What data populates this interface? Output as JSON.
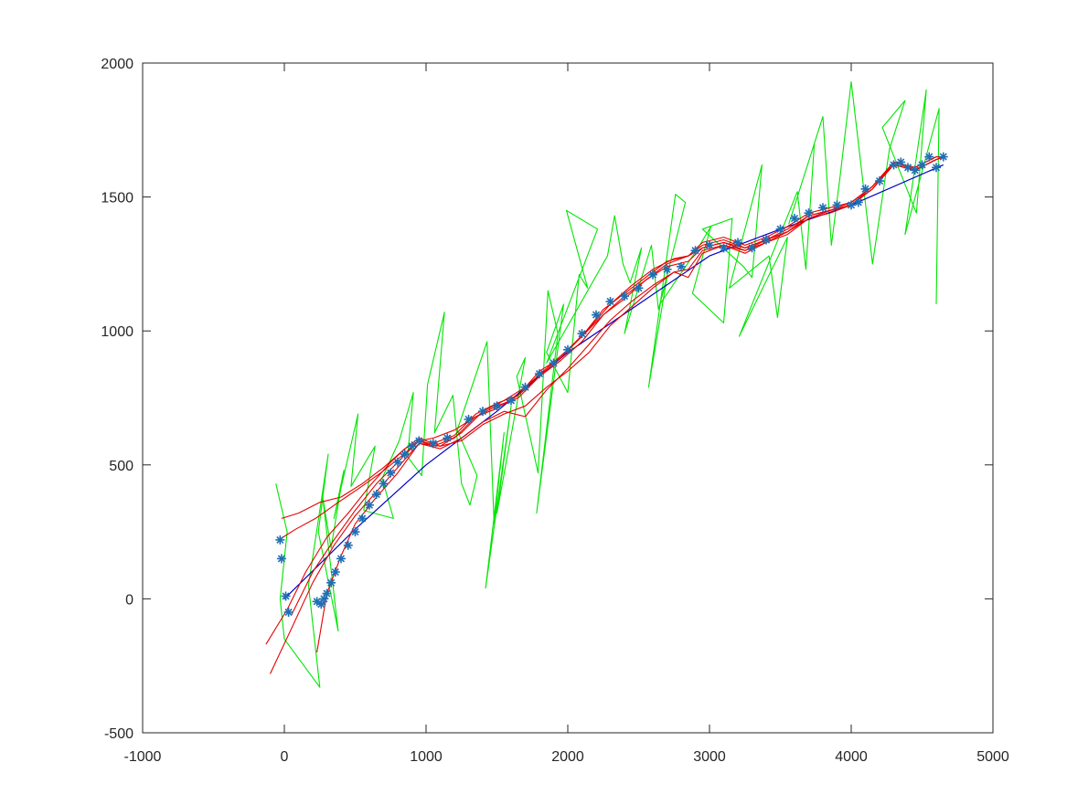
{
  "chart_data": {
    "type": "line",
    "title": "",
    "xlabel": "",
    "ylabel": "",
    "xlim": [
      -1000,
      5000
    ],
    "ylim": [
      -500,
      2000
    ],
    "xticks": [
      -1000,
      0,
      1000,
      2000,
      3000,
      4000,
      5000
    ],
    "yticks": [
      -500,
      0,
      500,
      1000,
      1500,
      2000
    ],
    "xtick_labels": [
      "-1000",
      "0",
      "1000",
      "2000",
      "3000",
      "4000",
      "5000"
    ],
    "ytick_labels": [
      "-500",
      "0",
      "500",
      "1000",
      "1500",
      "2000"
    ],
    "grid": false,
    "legend": "none",
    "colors": {
      "true_path": "#0000cc",
      "noisy": "#00e600",
      "estimates": "#e60000",
      "markers": "#1f6fb4"
    },
    "series": [
      {
        "role": "true_path",
        "style": "line",
        "x": [
          0,
          500,
          1000,
          1500,
          2000,
          2500,
          3000,
          3500,
          4000,
          4650
        ],
        "y": [
          0,
          260,
          500,
          700,
          920,
          1100,
          1280,
          1380,
          1470,
          1620
        ]
      },
      {
        "role": "noisy",
        "style": "line",
        "x": [
          -60,
          20,
          -30,
          0,
          250,
          170,
          310,
          240,
          380,
          270,
          330,
          420,
          350,
          520,
          470,
          640,
          560,
          770,
          690,
          810,
          910,
          870,
          970,
          1010,
          1130,
          1060,
          1190,
          1250,
          1310,
          1360,
          1220,
          1430,
          1480,
          1550,
          1420,
          1600,
          1500,
          1700,
          1640,
          1790,
          1860,
          1930,
          1780,
          1970,
          1850,
          2000,
          2080,
          2140,
          1990,
          2210,
          1850,
          2280,
          2330,
          2390,
          2440,
          2520,
          2400,
          2590,
          2640,
          2700,
          2570,
          2760,
          2830,
          2650,
          2920,
          3010,
          2880,
          3100,
          3160,
          2950,
          3240,
          3300,
          3370,
          3140,
          3420,
          3480,
          3550,
          3210,
          3620,
          3680,
          3740,
          3560,
          3800,
          3860,
          3920,
          4000,
          4150,
          4270,
          4380,
          4220,
          4460,
          4530,
          4380,
          4620,
          4600
        ],
        "y": [
          430,
          250,
          0,
          -150,
          -330,
          50,
          540,
          250,
          -120,
          380,
          190,
          480,
          300,
          690,
          420,
          570,
          330,
          300,
          450,
          590,
          770,
          530,
          460,
          800,
          1070,
          620,
          760,
          430,
          350,
          460,
          630,
          960,
          280,
          620,
          40,
          720,
          320,
          900,
          830,
          470,
          1150,
          990,
          320,
          1100,
          920,
          770,
          1210,
          1160,
          1450,
          1380,
          880,
          1280,
          1430,
          1250,
          1180,
          1310,
          990,
          1320,
          1080,
          1200,
          790,
          1510,
          1480,
          1100,
          1310,
          1390,
          1140,
          1030,
          1420,
          1380,
          1240,
          1200,
          1620,
          1160,
          1280,
          1050,
          1350,
          980,
          1520,
          1230,
          1700,
          1400,
          1800,
          1320,
          1570,
          1930,
          1250,
          1680,
          1860,
          1760,
          1440,
          1900,
          1360,
          1830,
          1100
        ]
      },
      {
        "role": "estimates",
        "style": "line",
        "x": [
          -130,
          20,
          150,
          300,
          450,
          600,
          750,
          850,
          950,
          1050,
          1200,
          1350,
          1500,
          1650,
          1800,
          1950,
          2100,
          2250,
          2400,
          2550,
          2700,
          2850,
          2950,
          3100,
          3250,
          3400,
          3550,
          3700,
          3850,
          4000,
          4150,
          4300,
          4450,
          4600,
          4650
        ],
        "y": [
          -170,
          -40,
          100,
          230,
          320,
          420,
          510,
          560,
          590,
          600,
          630,
          680,
          710,
          760,
          830,
          900,
          980,
          1060,
          1130,
          1190,
          1250,
          1280,
          1310,
          1330,
          1310,
          1340,
          1370,
          1420,
          1450,
          1480,
          1540,
          1620,
          1600,
          1640,
          1650
        ]
      },
      {
        "role": "estimates",
        "style": "line",
        "x": [
          -20,
          100,
          250,
          400,
          550,
          700,
          850,
          950,
          1050,
          1200,
          1350,
          1500,
          1650,
          1800,
          1950,
          2100,
          2250,
          2400,
          2550,
          2700,
          2850,
          2950,
          3100,
          3250,
          3400,
          3550,
          3700,
          3850,
          4000,
          4150,
          4300,
          4450,
          4600,
          4650
        ],
        "y": [
          300,
          320,
          360,
          380,
          430,
          490,
          560,
          600,
          580,
          610,
          690,
          730,
          760,
          850,
          900,
          980,
          1080,
          1140,
          1200,
          1260,
          1280,
          1320,
          1340,
          1310,
          1340,
          1380,
          1430,
          1450,
          1470,
          1540,
          1630,
          1610,
          1650,
          1650
        ]
      },
      {
        "role": "estimates",
        "style": "line",
        "x": [
          -40,
          80,
          220,
          380,
          520,
          680,
          820,
          950,
          1050,
          1200,
          1350,
          1500,
          1650,
          1800,
          1950,
          2100,
          2250,
          2400,
          2550,
          2700,
          2850,
          2950,
          3100,
          3250,
          3400,
          3550,
          3700,
          3850,
          4000,
          4150,
          4300,
          4450,
          4600,
          4650
        ],
        "y": [
          220,
          260,
          300,
          360,
          410,
          470,
          530,
          590,
          570,
          600,
          680,
          720,
          750,
          830,
          890,
          960,
          1060,
          1120,
          1190,
          1240,
          1260,
          1310,
          1330,
          1300,
          1340,
          1370,
          1430,
          1450,
          1470,
          1530,
          1620,
          1600,
          1640,
          1650
        ]
      },
      {
        "role": "estimates",
        "style": "line",
        "x": [
          -100,
          60,
          200,
          350,
          500,
          650,
          800,
          950,
          1100,
          1250,
          1400,
          1550,
          1700,
          1850,
          2000,
          2150,
          2300,
          2450,
          2600,
          2750,
          2850,
          2950,
          3100,
          3250,
          3400,
          3550,
          3700,
          3850,
          4000,
          4150,
          4300,
          4450,
          4600,
          4650
        ],
        "y": [
          -280,
          -100,
          60,
          200,
          310,
          400,
          490,
          580,
          560,
          600,
          660,
          700,
          680,
          780,
          860,
          950,
          1040,
          1110,
          1170,
          1220,
          1200,
          1290,
          1320,
          1290,
          1330,
          1360,
          1420,
          1440,
          1470,
          1530,
          1620,
          1600,
          1640,
          1650
        ]
      },
      {
        "role": "estimates",
        "style": "line",
        "x": [
          230,
          300,
          400,
          500,
          650,
          800,
          950,
          1100,
          1250,
          1400,
          1550,
          1700,
          1850,
          2000,
          2150,
          2300,
          2450,
          2600,
          2750,
          2850,
          2950,
          3100,
          3250,
          3400,
          3550,
          3700,
          3850,
          4000,
          4150,
          4300,
          4450,
          4600,
          4650
        ],
        "y": [
          -200,
          20,
          160,
          280,
          380,
          470,
          580,
          570,
          590,
          650,
          690,
          720,
          790,
          850,
          920,
          1020,
          1090,
          1160,
          1220,
          1230,
          1300,
          1320,
          1300,
          1330,
          1370,
          1420,
          1450,
          1470,
          1530,
          1630,
          1600,
          1640,
          1650
        ]
      },
      {
        "role": "estimates",
        "style": "line",
        "x": [
          50,
          200,
          350,
          500,
          650,
          800,
          950,
          1100,
          1250,
          1400,
          1550,
          1700,
          1850,
          2000,
          2150,
          2300,
          2450,
          2600,
          2750,
          2850,
          2950,
          3100,
          3250,
          3400,
          3550,
          3700,
          3850,
          4000,
          4150,
          4300,
          4450,
          4600,
          4650
        ],
        "y": [
          -60,
          100,
          220,
          330,
          430,
          510,
          590,
          570,
          620,
          700,
          740,
          790,
          860,
          930,
          1010,
          1100,
          1170,
          1230,
          1270,
          1280,
          1330,
          1350,
          1320,
          1350,
          1390,
          1440,
          1460,
          1480,
          1540,
          1630,
          1610,
          1650,
          1650
        ]
      },
      {
        "role": "markers",
        "style": "asterisk",
        "x": [
          -30,
          -20,
          10,
          30,
          230,
          260,
          280,
          300,
          330,
          360,
          400,
          450,
          500,
          550,
          600,
          650,
          700,
          750,
          800,
          850,
          900,
          950,
          1050,
          1150,
          1300,
          1400,
          1500,
          1600,
          1700,
          1800,
          1900,
          2000,
          2100,
          2200,
          2300,
          2400,
          2500,
          2600,
          2700,
          2800,
          2900,
          3000,
          3100,
          3200,
          3300,
          3400,
          3500,
          3600,
          3700,
          3800,
          3900,
          4000,
          4050,
          4100,
          4200,
          4300,
          4350,
          4400,
          4450,
          4500,
          4550,
          4600,
          4650
        ],
        "y": [
          220,
          150,
          10,
          -50,
          -10,
          -20,
          0,
          20,
          60,
          100,
          150,
          200,
          250,
          300,
          350,
          390,
          430,
          470,
          510,
          540,
          570,
          590,
          580,
          600,
          670,
          700,
          720,
          740,
          790,
          840,
          880,
          930,
          990,
          1060,
          1110,
          1130,
          1160,
          1210,
          1230,
          1240,
          1300,
          1320,
          1310,
          1330,
          1310,
          1340,
          1380,
          1420,
          1440,
          1460,
          1470,
          1470,
          1480,
          1530,
          1560,
          1620,
          1630,
          1610,
          1600,
          1620,
          1650,
          1610,
          1650
        ]
      }
    ]
  }
}
